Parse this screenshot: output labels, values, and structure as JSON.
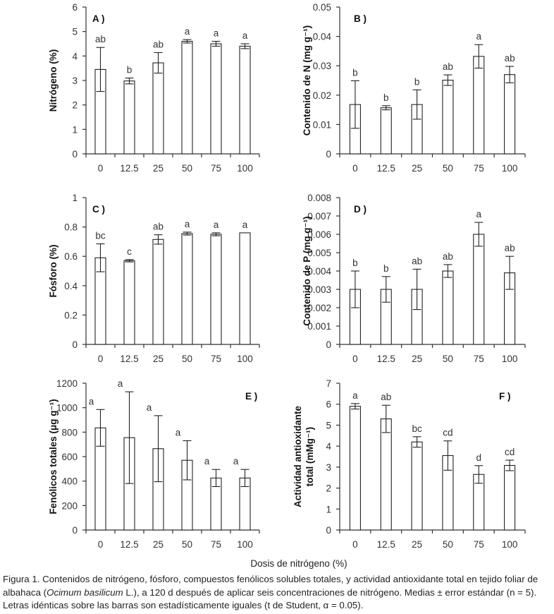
{
  "figure": {
    "x_axis_title": "Dosis de nitrógeno (%)",
    "caption": {
      "part1": "Figura 1. Contenidos de nitrógeno, fósforo, compuestos fenólicos solubles totales, y actividad antioxidante total en tejido foliar de albahaca (",
      "species": "Ocimum basilicum",
      "part2": " L.), a 120 d después de aplicar seis concentraciones de nitrógeno. Medias ± error estándar (n = 5). Letras idénticas sobre las barras son estadísticamente iguales (t de Student, α = 0.05)."
    }
  },
  "chart_data": [
    {
      "type": "bar",
      "panel": "A )",
      "ylabel": "Nitrógeno (%)",
      "categories": [
        "0",
        "12.5",
        "25",
        "50",
        "75",
        "100"
      ],
      "values": [
        3.45,
        2.98,
        3.72,
        4.6,
        4.5,
        4.4
      ],
      "errors": [
        0.9,
        0.12,
        0.42,
        0.07,
        0.1,
        0.1
      ],
      "letters": [
        "ab",
        "b",
        "ab",
        "a",
        "a",
        "a"
      ],
      "ylim": [
        0,
        6
      ],
      "yticks": [
        "0",
        "1",
        "2",
        "3",
        "4",
        "5",
        "6"
      ]
    },
    {
      "type": "bar",
      "panel": "B )",
      "ylabel": "Contenido de N (mg g⁻¹)",
      "categories": [
        "0",
        "12.5",
        "25",
        "50",
        "75",
        "100"
      ],
      "values": [
        0.0168,
        0.0157,
        0.0168,
        0.0251,
        0.0332,
        0.027
      ],
      "errors": [
        0.0081,
        0.0007,
        0.005,
        0.0018,
        0.004,
        0.0028
      ],
      "letters": [
        "b",
        "b",
        "b",
        "ab",
        "a",
        "ab"
      ],
      "ylim": [
        0,
        0.05
      ],
      "yticks": [
        "0",
        "0.01",
        "0.02",
        "0.03",
        "0.04",
        "0.05"
      ]
    },
    {
      "type": "bar",
      "panel": "C )",
      "ylabel": "Fósforo (%)",
      "categories": [
        "0",
        "12.5",
        "25",
        "50",
        "75",
        "100"
      ],
      "values": [
        0.59,
        0.57,
        0.715,
        0.755,
        0.75,
        0.76
      ],
      "errors": [
        0.095,
        0.008,
        0.032,
        0.01,
        0.01,
        0
      ],
      "letters": [
        "bc",
        "c",
        "ab",
        "a",
        "a",
        "a"
      ],
      "ylim": [
        0,
        1
      ],
      "yticks": [
        "0",
        "0.2",
        "0.4",
        "0.6",
        "0.8",
        "1"
      ]
    },
    {
      "type": "bar",
      "panel": "D )",
      "ylabel": "Contenido de P (mg g⁻¹)",
      "categories": [
        "0",
        "12.5",
        "25",
        "50",
        "75",
        "100"
      ],
      "values": [
        0.003,
        0.003,
        0.003,
        0.004,
        0.006,
        0.0039
      ],
      "errors": [
        0.001,
        0.0007,
        0.0011,
        0.00035,
        0.00065,
        0.0009
      ],
      "letters": [
        "b",
        "b",
        "ab",
        "ab",
        "a",
        "ab"
      ],
      "ylim": [
        0,
        0.008
      ],
      "yticks": [
        "0",
        "0.001",
        "0.002",
        "0.003",
        "0.004",
        "0.005",
        "0.006",
        "0.007",
        "0.008"
      ]
    },
    {
      "type": "bar",
      "panel": "E )",
      "ylabel": "Fenólicos totales (μg g⁻¹)",
      "categories": [
        "0",
        "12.5",
        "25",
        "50",
        "75",
        "100"
      ],
      "values": [
        835,
        755,
        665,
        570,
        425,
        425
      ],
      "errors": [
        150,
        375,
        270,
        160,
        70,
        70
      ],
      "letters": [
        "a",
        "a",
        "a",
        "a",
        "a",
        "a"
      ],
      "ylim": [
        0,
        1200
      ],
      "yticks": [
        "0",
        "200",
        "400",
        "600",
        "800",
        "1000",
        "1200"
      ]
    },
    {
      "type": "bar",
      "panel": "F )",
      "ylabel": "Actividad antioxidante total (mMg⁻¹)",
      "ylabel_lines": [
        "Actividad antioxidante",
        "total (mMg⁻¹)"
      ],
      "categories": [
        "0",
        "12.5",
        "25",
        "50",
        "75",
        "100"
      ],
      "values": [
        5.9,
        5.3,
        4.2,
        3.55,
        2.65,
        3.08
      ],
      "errors": [
        0.13,
        0.65,
        0.25,
        0.7,
        0.42,
        0.25
      ],
      "letters": [
        "a",
        "ab",
        "bc",
        "cd",
        "d",
        "cd"
      ],
      "ylim": [
        0,
        7
      ],
      "yticks": [
        "0",
        "1",
        "2",
        "3",
        "4",
        "5",
        "6",
        "7"
      ]
    }
  ]
}
